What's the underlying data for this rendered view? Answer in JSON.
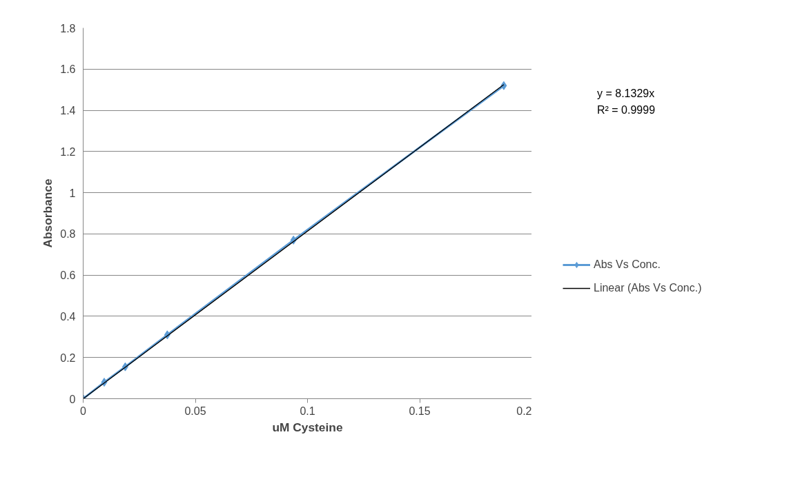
{
  "chart_data": {
    "type": "line",
    "xlabel": "uM Cysteine",
    "ylabel": "Absorbance",
    "xlim": [
      0,
      0.2
    ],
    "xticks": [
      0,
      0.05,
      0.1,
      0.15,
      0.2
    ],
    "ylim": [
      0,
      1.8
    ],
    "yticks": [
      0,
      0.2,
      0.4,
      0.6,
      0.8,
      1,
      1.2,
      1.4,
      1.6,
      1.8
    ],
    "grid": "y",
    "legend": "right",
    "series": [
      {
        "name": "Abs Vs Conc.",
        "color": "#5b9bd5",
        "marker": "diamond",
        "x": [
          0,
          0.009375,
          0.01875,
          0.0375,
          0.09375,
          0.1875
        ],
        "values": [
          0,
          0.08,
          0.155,
          0.31,
          0.77,
          1.52
        ]
      },
      {
        "name": "Linear (Abs Vs Conc.)",
        "type": "line",
        "color": "#000000",
        "marker": "none",
        "x": [
          0,
          0.1875
        ],
        "values": [
          0,
          1.525
        ]
      }
    ],
    "annotations": [
      "y = 8.1329x",
      "R² = 0.9999"
    ]
  }
}
